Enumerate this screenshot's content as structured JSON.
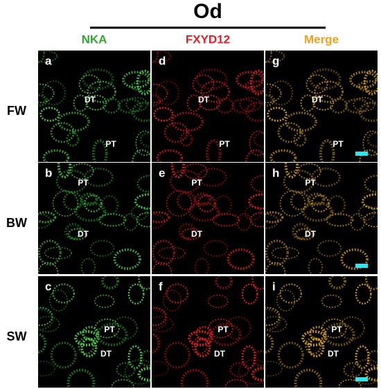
{
  "header": {
    "title": "Od"
  },
  "columns": [
    "NKA",
    "FXYD12",
    "Merge"
  ],
  "rows": [
    "FW",
    "BW",
    "SW"
  ],
  "panels": [
    [
      {
        "letter": "a",
        "labels": [
          "DT",
          "PT"
        ]
      },
      {
        "letter": "d",
        "labels": [
          "DT",
          "PT"
        ]
      },
      {
        "letter": "g",
        "labels": [
          "DT",
          "PT"
        ]
      }
    ],
    [
      {
        "letter": "b",
        "labels": [
          "PT",
          "DT"
        ]
      },
      {
        "letter": "e",
        "labels": [
          "PT",
          "DT"
        ]
      },
      {
        "letter": "h",
        "labels": [
          "PT",
          "DT"
        ]
      }
    ],
    [
      {
        "letter": "c",
        "labels": [
          "PT",
          "DT"
        ]
      },
      {
        "letter": "f",
        "labels": [
          "PT",
          "DT"
        ]
      },
      {
        "letter": "i",
        "labels": [
          "PT",
          "DT"
        ]
      }
    ]
  ]
}
